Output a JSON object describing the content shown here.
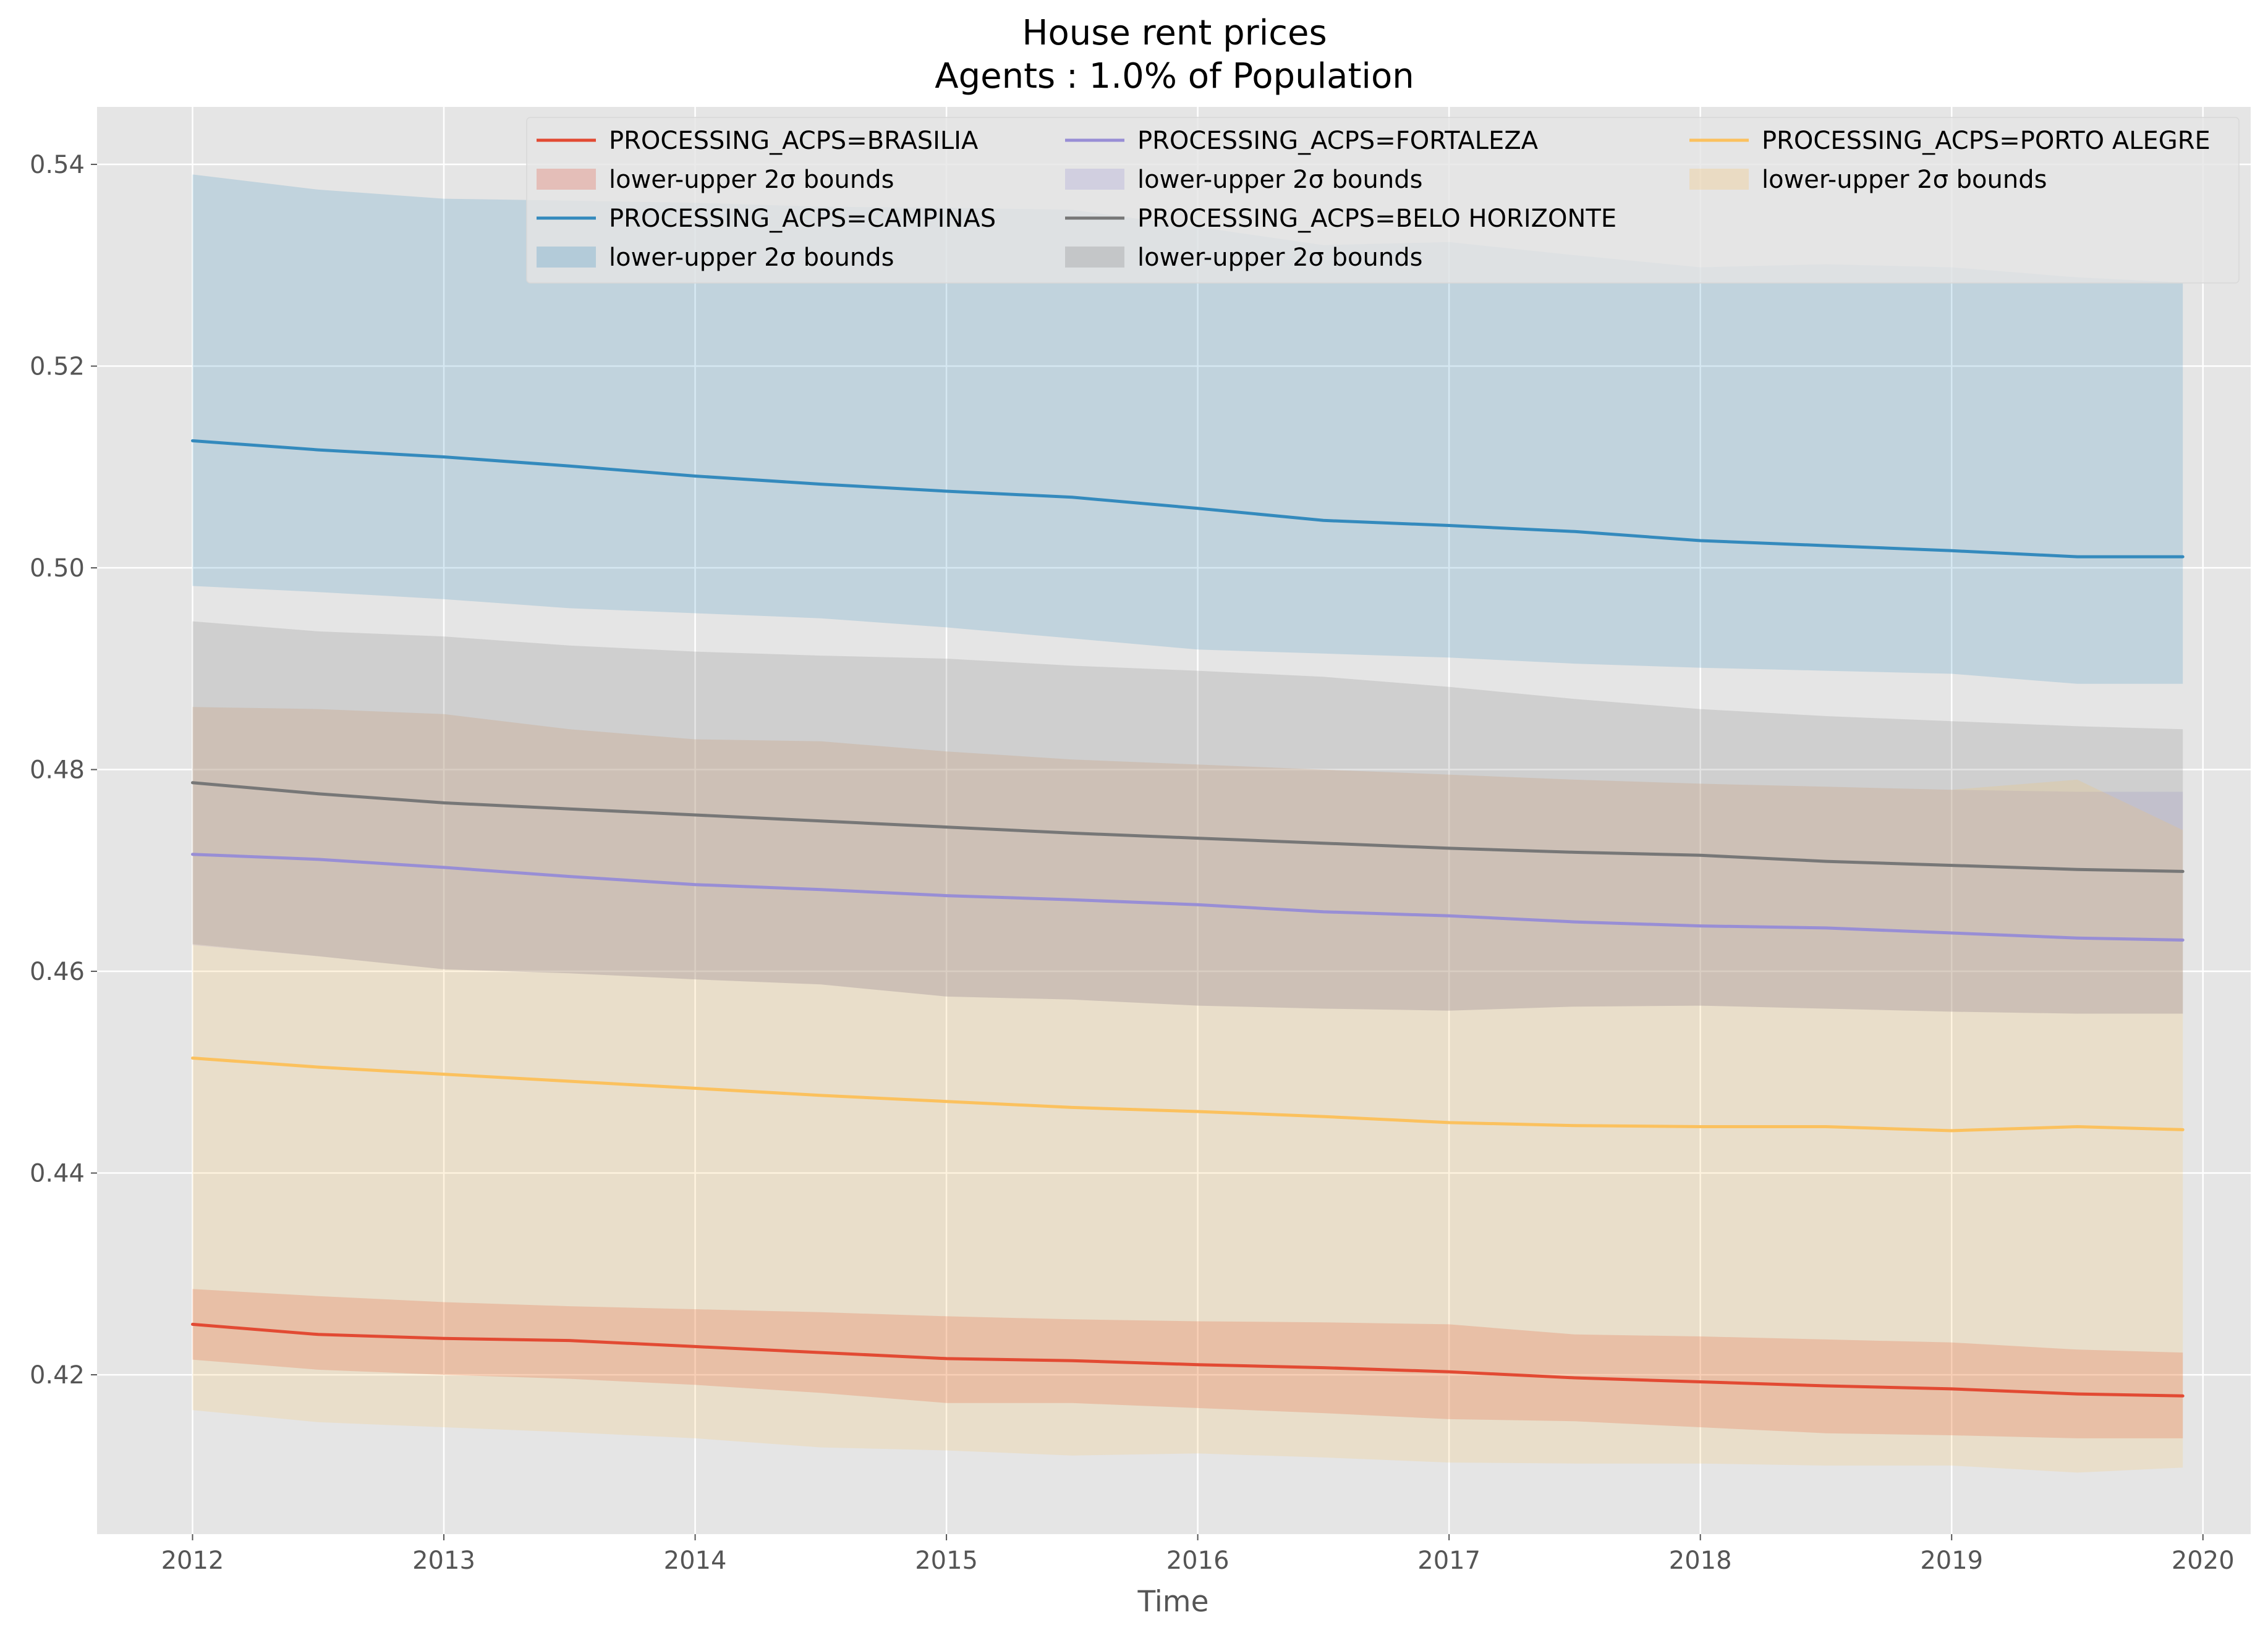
{
  "chart_data": {
    "type": "line",
    "title": "House rent prices",
    "subtitle": "Agents : 1.0% of Population",
    "xlabel": "Time",
    "ylabel": "",
    "xlim": [
      2011.62,
      2020.19
    ],
    "ylim": [
      0.4042,
      0.5457
    ],
    "x_ticks": [
      "2012",
      "2013",
      "2014",
      "2015",
      "2016",
      "2017",
      "2018",
      "2019",
      "2020"
    ],
    "y_ticks": [
      "0.42",
      "0.44",
      "0.46",
      "0.48",
      "0.50",
      "0.52",
      "0.54"
    ],
    "grid": true,
    "legend_position": "top-center",
    "legend_band_label": "lower-upper 2σ bounds",
    "x_points": [
      2012.0,
      2012.5,
      2013.0,
      2013.5,
      2014.0,
      2014.5,
      2015.0,
      2015.5,
      2016.0,
      2016.5,
      2017.0,
      2017.5,
      2018.0,
      2018.5,
      2019.0,
      2019.5,
      2019.92
    ],
    "series": [
      {
        "name": "PROCESSING_ACPS=BRASILIA",
        "color": "#E24A33",
        "values": [
          0.425,
          0.424,
          0.4236,
          0.4234,
          0.4228,
          0.4222,
          0.4216,
          0.4214,
          0.421,
          0.4207,
          0.4203,
          0.4197,
          0.4193,
          0.4189,
          0.4186,
          0.4181,
          0.4179
        ],
        "upper": [
          0.4285,
          0.4278,
          0.4272,
          0.4268,
          0.4265,
          0.4262,
          0.4258,
          0.4255,
          0.4253,
          0.4252,
          0.425,
          0.424,
          0.4238,
          0.4235,
          0.4232,
          0.4225,
          0.4222
        ],
        "lower": [
          0.4215,
          0.4205,
          0.42,
          0.4196,
          0.419,
          0.4182,
          0.4172,
          0.4172,
          0.4167,
          0.4162,
          0.4156,
          0.4154,
          0.4148,
          0.4142,
          0.414,
          0.4137,
          0.4137
        ]
      },
      {
        "name": "PROCESSING_ACPS=CAMPINAS",
        "color": "#348ABD",
        "values": [
          0.5126,
          0.5117,
          0.511,
          0.5101,
          0.5091,
          0.5083,
          0.5076,
          0.507,
          0.5059,
          0.5047,
          0.5042,
          0.5036,
          0.5027,
          0.5022,
          0.5017,
          0.5011,
          0.5011
        ],
        "upper": [
          0.539,
          0.5375,
          0.5366,
          0.5364,
          0.5362,
          0.5358,
          0.5357,
          0.5355,
          0.5338,
          0.532,
          0.5323,
          0.531,
          0.5298,
          0.5301,
          0.5298,
          0.5288,
          0.5283
        ],
        "lower": [
          0.4982,
          0.4976,
          0.4969,
          0.496,
          0.4955,
          0.495,
          0.4941,
          0.493,
          0.4919,
          0.4915,
          0.4911,
          0.4905,
          0.4901,
          0.4898,
          0.4895,
          0.4885,
          0.4885
        ]
      },
      {
        "name": "PROCESSING_ACPS=FORTALEZA",
        "color": "#988ED5",
        "values": [
          0.4716,
          0.4711,
          0.4703,
          0.4694,
          0.4686,
          0.4681,
          0.4675,
          0.4671,
          0.4666,
          0.4659,
          0.4655,
          0.4649,
          0.4645,
          0.4643,
          0.4638,
          0.4633,
          0.4631
        ],
        "upper": [
          0.4862,
          0.486,
          0.4855,
          0.484,
          0.483,
          0.4828,
          0.4818,
          0.481,
          0.4805,
          0.48,
          0.4795,
          0.479,
          0.4786,
          0.4783,
          0.478,
          0.4778,
          0.4778
        ],
        "lower": [
          0.4626,
          0.4615,
          0.4602,
          0.4598,
          0.4592,
          0.4587,
          0.4575,
          0.4572,
          0.4566,
          0.4563,
          0.4561,
          0.4565,
          0.4566,
          0.4563,
          0.456,
          0.4558,
          0.4558
        ]
      },
      {
        "name": "PROCESSING_ACPS=BELO HORIZONTE",
        "color": "#777777",
        "values": [
          0.4787,
          0.4776,
          0.4767,
          0.4761,
          0.4755,
          0.4749,
          0.4743,
          0.4737,
          0.4732,
          0.4727,
          0.4722,
          0.4718,
          0.4715,
          0.4709,
          0.4705,
          0.4701,
          0.4699
        ],
        "upper": [
          0.4947,
          0.4937,
          0.4932,
          0.4923,
          0.4917,
          0.4913,
          0.491,
          0.4903,
          0.4898,
          0.4892,
          0.4882,
          0.487,
          0.486,
          0.4853,
          0.4848,
          0.4843,
          0.484
        ],
        "lower": [
          0.4627,
          0.4615,
          0.4602,
          0.4598,
          0.4592,
          0.4587,
          0.4575,
          0.4572,
          0.4566,
          0.4563,
          0.4561,
          0.4565,
          0.4566,
          0.4563,
          0.456,
          0.4558,
          0.4558
        ]
      },
      {
        "name": "PROCESSING_ACPS=PORTO ALEGRE",
        "color": "#FBC15E",
        "values": [
          0.4514,
          0.4505,
          0.4498,
          0.4491,
          0.4484,
          0.4477,
          0.4471,
          0.4465,
          0.4461,
          0.4456,
          0.445,
          0.4447,
          0.4446,
          0.4446,
          0.4442,
          0.4446,
          0.4443
        ],
        "upper": [
          0.4862,
          0.486,
          0.4855,
          0.484,
          0.483,
          0.4828,
          0.4818,
          0.481,
          0.4805,
          0.48,
          0.4795,
          0.479,
          0.4786,
          0.4783,
          0.478,
          0.479,
          0.474
        ],
        "lower": [
          0.4165,
          0.4153,
          0.4148,
          0.4143,
          0.4137,
          0.4128,
          0.4125,
          0.412,
          0.4122,
          0.4118,
          0.4113,
          0.4112,
          0.4112,
          0.411,
          0.411,
          0.4103,
          0.4108
        ]
      }
    ],
    "band_fills": [
      {
        "series": 0,
        "color": "#E24A33",
        "opacity": 0.25
      },
      {
        "series": 1,
        "color": "#348ABD",
        "opacity": 0.2
      },
      {
        "series": 2,
        "color": "#988ED5",
        "opacity": 0.2
      },
      {
        "series": 3,
        "color": "#777777",
        "opacity": 0.2
      },
      {
        "series": 4,
        "color": "#FBC15E",
        "opacity": 0.2
      }
    ],
    "legend_entries": [
      {
        "kind": "line",
        "series": 0,
        "label": "PROCESSING_ACPS=BRASILIA",
        "color": "#E24A33"
      },
      {
        "kind": "band",
        "series": 0,
        "label": "lower-upper 2σ bounds",
        "color": "#E24A33"
      },
      {
        "kind": "line",
        "series": 1,
        "label": "PROCESSING_ACPS=CAMPINAS",
        "color": "#348ABD"
      },
      {
        "kind": "band",
        "series": 1,
        "label": "lower-upper 2σ bounds",
        "color": "#348ABD"
      },
      {
        "kind": "line",
        "series": 2,
        "label": "PROCESSING_ACPS=FORTALEZA",
        "color": "#988ED5"
      },
      {
        "kind": "band",
        "series": 2,
        "label": "lower-upper 2σ bounds",
        "color": "#988ED5"
      },
      {
        "kind": "line",
        "series": 3,
        "label": "PROCESSING_ACPS=BELO HORIZONTE",
        "color": "#777777"
      },
      {
        "kind": "band",
        "series": 3,
        "label": "lower-upper 2σ bounds",
        "color": "#777777"
      },
      {
        "kind": "line",
        "series": 4,
        "label": "PROCESSING_ACPS=PORTO ALEGRE",
        "color": "#FBC15E"
      },
      {
        "kind": "band",
        "series": 4,
        "label": "lower-upper 2σ bounds",
        "color": "#FBC15E"
      }
    ]
  }
}
